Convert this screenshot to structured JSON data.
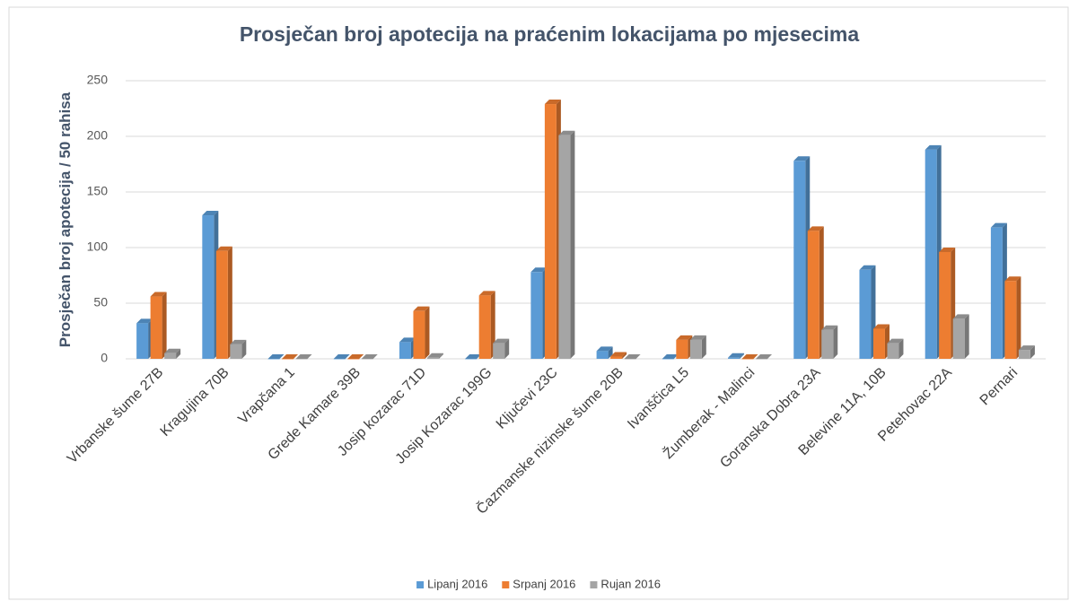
{
  "chart_data": {
    "type": "bar",
    "title": "Prosječan broj apotecija na praćenim lokacijama po mjesecima",
    "y_label": "Prosječan broj apotecija / 50 rahisa",
    "categories": [
      "Vrbanske šume 27B",
      "Kragujina 70B",
      "Vrapčana 1",
      "Grede Kamare 39B",
      "Josip kozarac 71D",
      "Josip Kozarac 199G",
      "Ključevi 23C",
      "Čazmanske nizinske šume 20B",
      "Ivanščica L5",
      "Žumberak - Malinci",
      "Goranska Dobra 23A",
      "Belevine 11A, 10B",
      "Petehovac 22A",
      "Pernari"
    ],
    "series": [
      {
        "name": "Lipanj 2016",
        "color": "#5b9bd5",
        "values": [
          32,
          129,
          0,
          0,
          15,
          0,
          78,
          7,
          0,
          1,
          178,
          80,
          188,
          118
        ]
      },
      {
        "name": "Srpanj 2016",
        "color": "#ed7d31",
        "values": [
          56,
          97,
          0,
          0,
          43,
          57,
          229,
          2,
          17,
          0,
          115,
          27,
          96,
          70
        ]
      },
      {
        "name": "Rujan 2016",
        "color": "#a5a5a5",
        "values": [
          5,
          13,
          0,
          0,
          1,
          14,
          201,
          0,
          17,
          0,
          26,
          14,
          36,
          8
        ]
      }
    ],
    "ylim": [
      0,
      250
    ],
    "yticks": [
      0,
      50,
      100,
      150,
      200,
      250
    ],
    "grid": true,
    "legend": "bottom"
  }
}
